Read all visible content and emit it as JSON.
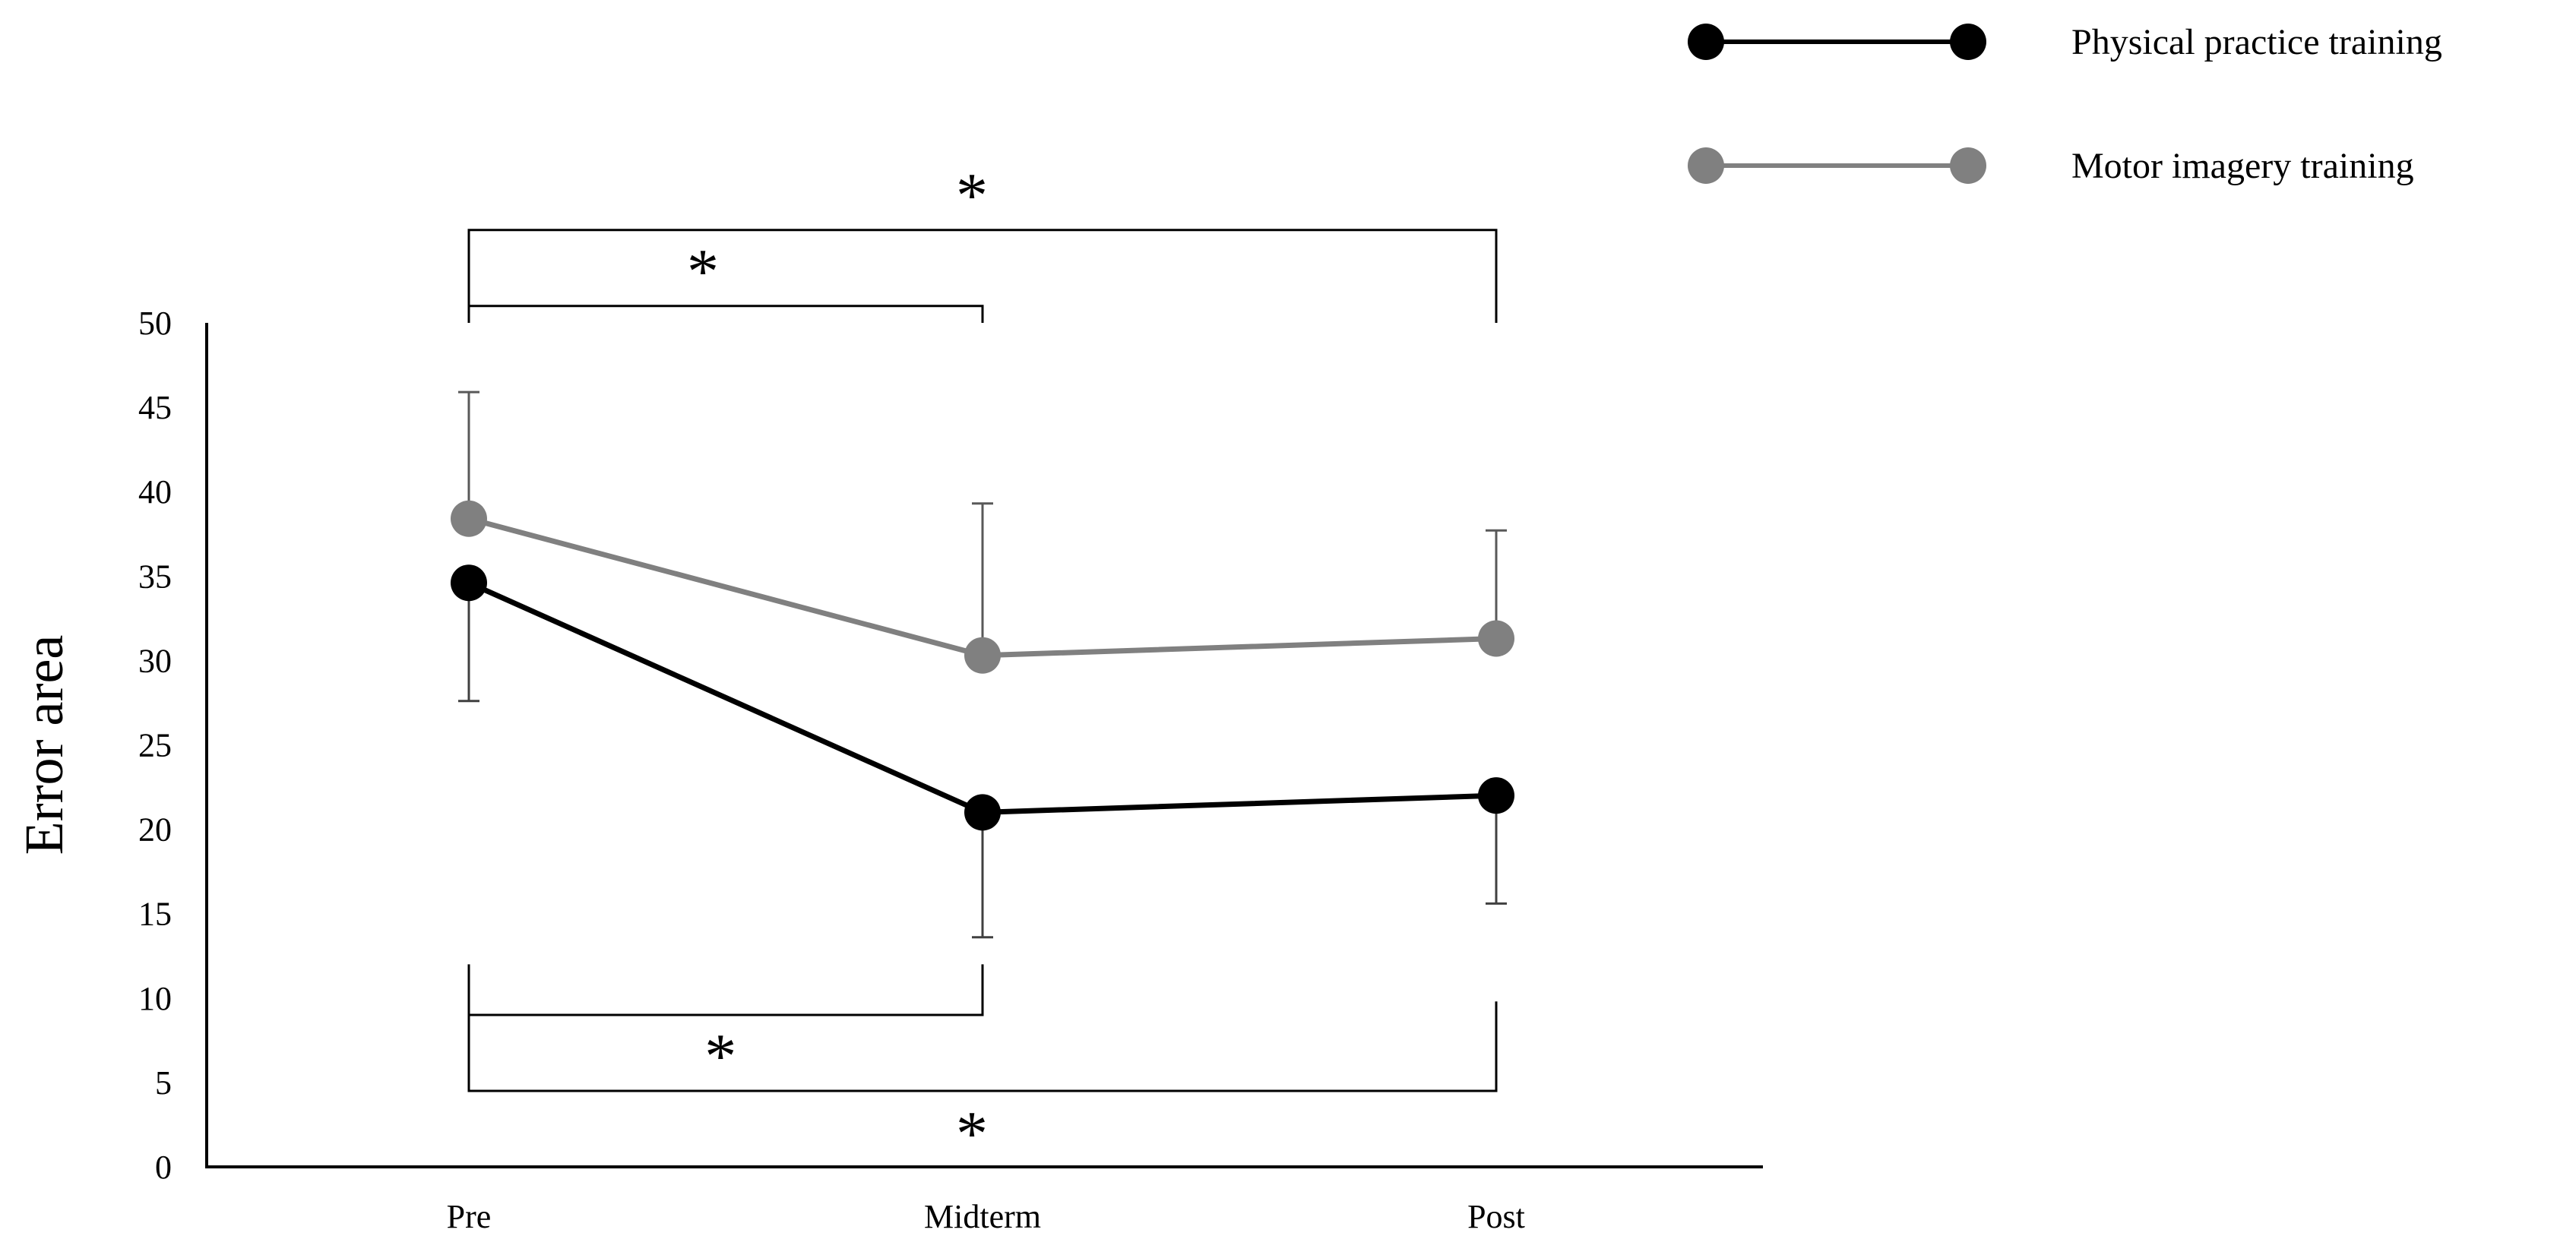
{
  "chart_data": {
    "type": "line",
    "ylabel": "Error area",
    "categories": [
      "Pre",
      "Midterm",
      "Post"
    ],
    "ylim": [
      0,
      50
    ],
    "yticks": [
      0,
      5,
      10,
      15,
      20,
      25,
      30,
      35,
      40,
      45,
      50
    ],
    "grid": false,
    "legend_position": "top-right",
    "series": [
      {
        "name": "Physical practice training",
        "color": "#000000",
        "values": [
          34.6,
          21.0,
          22.0
        ],
        "error_low": [
          27.6,
          13.6,
          15.6
        ],
        "error_high": null
      },
      {
        "name": "Motor imagery training",
        "color": "#808080",
        "values": [
          38.4,
          30.3,
          31.3
        ],
        "error_low": null,
        "error_high": [
          45.9,
          39.3,
          37.7
        ]
      }
    ],
    "significance": [
      {
        "from": "Pre",
        "to": "Midterm",
        "series": "Motor imagery training",
        "label": "*",
        "level": 51.0
      },
      {
        "from": "Pre",
        "to": "Post",
        "series": "Motor imagery training",
        "label": "*",
        "level": 55.5
      },
      {
        "from": "Pre",
        "to": "Midterm",
        "series": "Physical practice training",
        "label": "*",
        "level": 9.0
      },
      {
        "from": "Pre",
        "to": "Post",
        "series": "Physical practice training",
        "label": "*",
        "level": 4.5
      }
    ]
  }
}
